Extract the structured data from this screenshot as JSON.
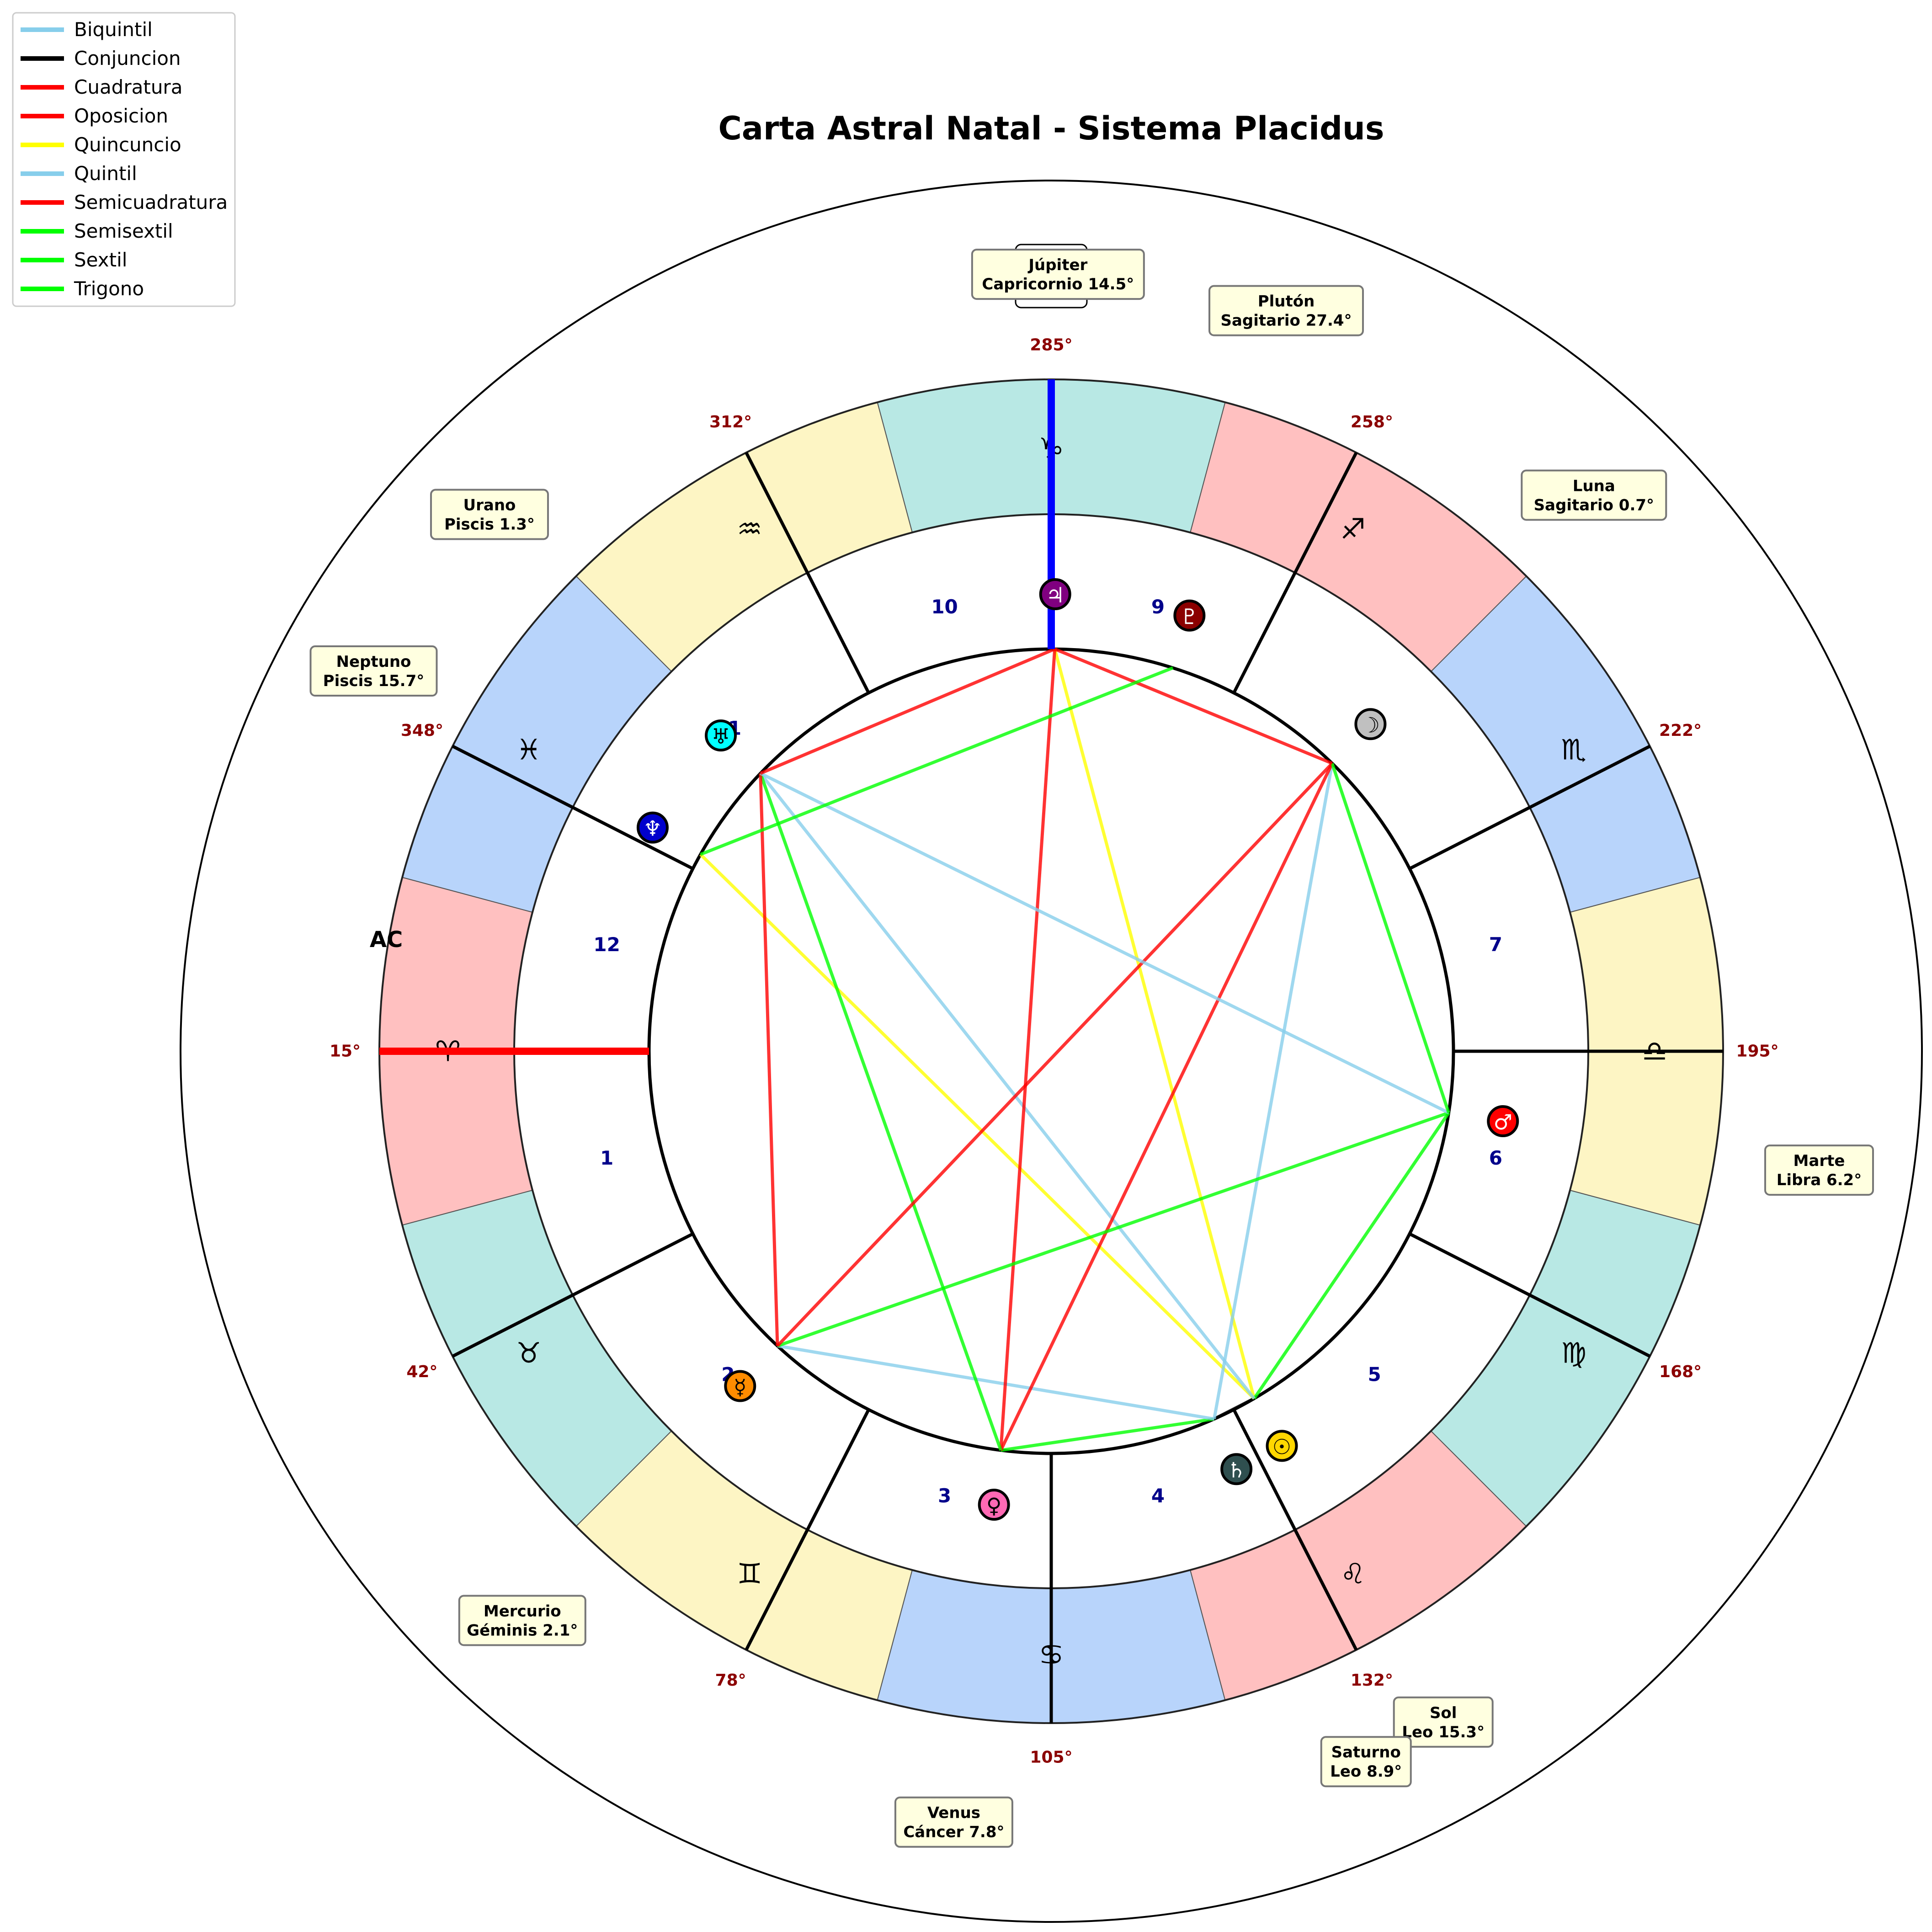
{
  "title": "Carta Astral Natal - Sistema Placidus",
  "legend": [
    {
      "label": "Biquintil",
      "color": "#87ceeb"
    },
    {
      "label": "Conjuncion",
      "color": "#000000"
    },
    {
      "label": "Cuadratura",
      "color": "#ff0000"
    },
    {
      "label": "Oposicion",
      "color": "#ff0000"
    },
    {
      "label": "Quincuncio",
      "color": "#ffff00"
    },
    {
      "label": "Quintil",
      "color": "#87ceeb"
    },
    {
      "label": "Semicuadratura",
      "color": "#ff0000"
    },
    {
      "label": "Semisextil",
      "color": "#00ff00"
    },
    {
      "label": "Sextil",
      "color": "#00ff00"
    },
    {
      "label": "Trigono",
      "color": "#00ff00"
    }
  ],
  "signs": [
    {
      "name": "Aries",
      "glyph": "♈",
      "color": "#ffc0c0"
    },
    {
      "name": "Tauro",
      "glyph": "♉",
      "color": "#b8e8e4"
    },
    {
      "name": "Géminis",
      "glyph": "♊",
      "color": "#fdf5c4"
    },
    {
      "name": "Cáncer",
      "glyph": "♋",
      "color": "#b8d4fb"
    },
    {
      "name": "Leo",
      "glyph": "♌",
      "color": "#ffc0c0"
    },
    {
      "name": "Virgo",
      "glyph": "♍",
      "color": "#b8e8e4"
    },
    {
      "name": "Libra",
      "glyph": "♎",
      "color": "#fdf5c4"
    },
    {
      "name": "Escorpio",
      "glyph": "♏",
      "color": "#b8d4fb"
    },
    {
      "name": "Sagitario",
      "glyph": "♐",
      "color": "#ffc0c0"
    },
    {
      "name": "Capricornio",
      "glyph": "♑",
      "color": "#b8e8e4"
    },
    {
      "name": "Acuario",
      "glyph": "♒",
      "color": "#fdf5c4"
    },
    {
      "name": "Piscis",
      "glyph": "♓",
      "color": "#b8d4fb"
    }
  ],
  "houses": [
    {
      "number": "1",
      "cusp": 15,
      "cusp_label": "15°"
    },
    {
      "number": "2",
      "cusp": 42,
      "cusp_label": "42°"
    },
    {
      "number": "3",
      "cusp": 78,
      "cusp_label": "78°"
    },
    {
      "number": "4",
      "cusp": 105,
      "cusp_label": "105°"
    },
    {
      "number": "5",
      "cusp": 132,
      "cusp_label": "132°"
    },
    {
      "number": "6",
      "cusp": 168,
      "cusp_label": "168°"
    },
    {
      "number": "7",
      "cusp": 195,
      "cusp_label": "195°"
    },
    {
      "number": "8",
      "cusp": 222,
      "cusp_label": "222°"
    },
    {
      "number": "9",
      "cusp": 258,
      "cusp_label": "258°"
    },
    {
      "number": "10",
      "cusp": 285,
      "cusp_label": "285°"
    },
    {
      "number": "11",
      "cusp": 312,
      "cusp_label": "312°"
    },
    {
      "number": "12",
      "cusp": 348,
      "cusp_label": "348°"
    }
  ],
  "ascendant": {
    "label": "AC",
    "degree": 15
  },
  "midheaven": {
    "label": "MC",
    "degree_label": "285°",
    "degree": 285
  },
  "planets": [
    {
      "name": "Sol",
      "glyph": "☉",
      "longitude": 135.3,
      "label": "Sol\nLeo 15.3°",
      "color": "#ffd700",
      "glyph_color": "#000000"
    },
    {
      "name": "Luna",
      "glyph": "☽",
      "longitude": 240.7,
      "label": "Luna\nSagitario 0.7°",
      "color": "#c0c0c0",
      "glyph_color": "#000000"
    },
    {
      "name": "Mercurio",
      "glyph": "☿",
      "longitude": 62.1,
      "label": "Mercurio\nGéminis 2.1°",
      "color": "#ff8c00",
      "glyph_color": "#000000"
    },
    {
      "name": "Venus",
      "glyph": "♀",
      "longitude": 97.8,
      "label": "Venus\nCáncer 7.8°",
      "color": "#ff69b4",
      "glyph_color": "#000000"
    },
    {
      "name": "Marte",
      "glyph": "♂",
      "longitude": 186.2,
      "label": "Marte\nLibra 6.2°",
      "color": "#ff0000",
      "glyph_color": "#ffffff"
    },
    {
      "name": "Júpiter",
      "glyph": "♃",
      "longitude": 284.5,
      "label": "Júpiter\nCapricornio 14.5°",
      "color": "#800080",
      "glyph_color": "#ffffff"
    },
    {
      "name": "Saturno",
      "glyph": "♄",
      "longitude": 128.9,
      "label": "Saturno\nLeo 8.9°",
      "color": "#2f4f4f",
      "glyph_color": "#ffffff"
    },
    {
      "name": "Urano",
      "glyph": "♅",
      "longitude": 331.3,
      "label": "Urano\nPiscis 1.3°",
      "color": "#00ffff",
      "glyph_color": "#000000"
    },
    {
      "name": "Neptuno",
      "glyph": "♆",
      "longitude": 345.7,
      "label": "Neptuno\nPiscis 15.7°",
      "color": "#0000cd",
      "glyph_color": "#ffffff"
    },
    {
      "name": "Plutón",
      "glyph": "♇",
      "longitude": 267.4,
      "label": "Plutón\nSagitario 27.4°",
      "color": "#8b0000",
      "glyph_color": "#ffffff"
    }
  ],
  "aspects": [
    {
      "from": "Sol",
      "to": "Saturno",
      "type": "Conjuncion",
      "color": "#000000"
    },
    {
      "from": "Sol",
      "to": "Júpiter",
      "type": "Quincuncio",
      "color": "#ffff00"
    },
    {
      "from": "Sol",
      "to": "Neptuno",
      "type": "Quincuncio",
      "color": "#ffff00"
    },
    {
      "from": "Sol",
      "to": "Marte",
      "type": "Trigono",
      "color": "#00ff00"
    },
    {
      "from": "Sol",
      "to": "Urano",
      "type": "Biquintil",
      "color": "#87ceeb"
    },
    {
      "from": "Saturno",
      "to": "Venus",
      "type": "Trigono",
      "color": "#00ff00"
    },
    {
      "from": "Saturno",
      "to": "Mercurio",
      "type": "Biquintil",
      "color": "#87ceeb"
    },
    {
      "from": "Saturno",
      "to": "Luna",
      "type": "Biquintil",
      "color": "#87ceeb"
    },
    {
      "from": "Venus",
      "to": "Júpiter",
      "type": "Oposicion",
      "color": "#ff0000"
    },
    {
      "from": "Venus",
      "to": "Luna",
      "type": "Cuadratura",
      "color": "#ff0000"
    },
    {
      "from": "Venus",
      "to": "Urano",
      "type": "Trigono",
      "color": "#00ff00"
    },
    {
      "from": "Mercurio",
      "to": "Marte",
      "type": "Sextil",
      "color": "#00ff00"
    },
    {
      "from": "Mercurio",
      "to": "Urano",
      "type": "Cuadratura",
      "color": "#ff0000"
    },
    {
      "from": "Mercurio",
      "to": "Luna",
      "type": "Oposicion",
      "color": "#ff0000"
    },
    {
      "from": "Marte",
      "to": "Urano",
      "type": "Quintil",
      "color": "#87ceeb"
    },
    {
      "from": "Marte",
      "to": "Luna",
      "type": "Sextil",
      "color": "#00ff00"
    },
    {
      "from": "Júpiter",
      "to": "Urano",
      "type": "Semicuadratura",
      "color": "#ff0000"
    },
    {
      "from": "Júpiter",
      "to": "Luna",
      "type": "Semicuadratura",
      "color": "#ff0000"
    },
    {
      "from": "Neptuno",
      "to": "Plutón",
      "type": "Sextil",
      "color": "#00ff00"
    }
  ]
}
